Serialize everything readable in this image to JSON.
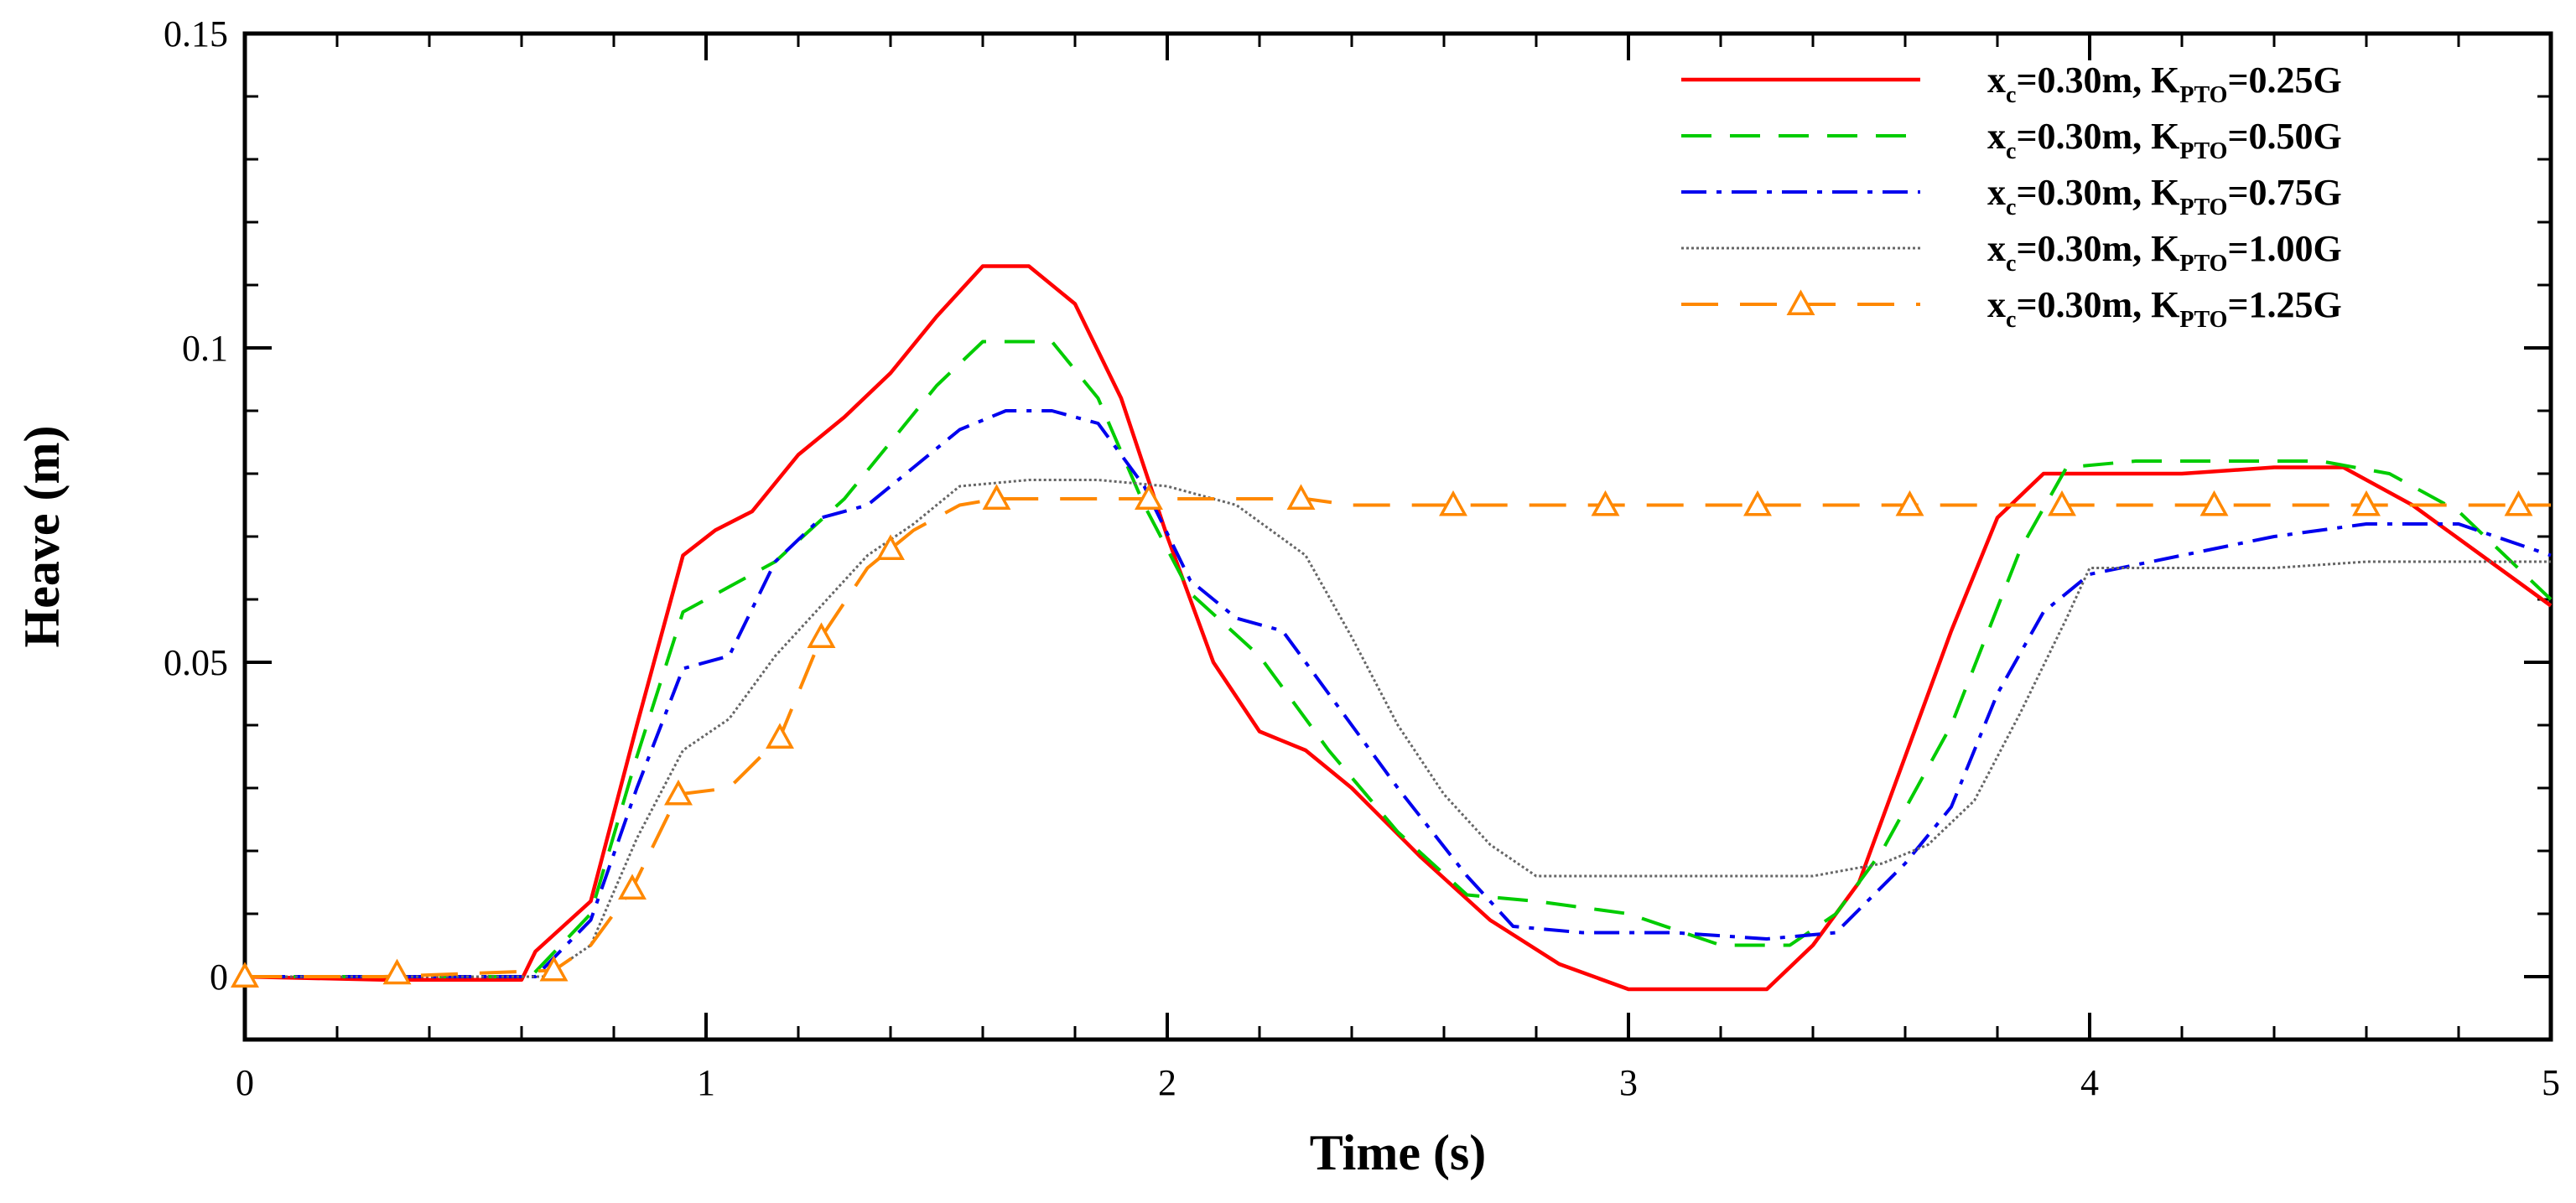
{
  "chart_data": {
    "type": "line",
    "title": "",
    "xlabel": "Time (s)",
    "ylabel": "Heave (m)",
    "xlim": [
      0,
      5
    ],
    "ylim": [
      -0.01,
      0.15
    ],
    "xticks": [
      0,
      1,
      2,
      3,
      4,
      5
    ],
    "yticks": [
      0,
      0.05,
      0.1,
      0.15
    ],
    "xtick_labels": [
      "0",
      "1",
      "2",
      "3",
      "4",
      "5"
    ],
    "ytick_labels": [
      "0",
      "0.05",
      "0.1",
      "0.15"
    ],
    "grid": false,
    "legend_position": "top-right",
    "series": [
      {
        "name": "xc=0.30m, KPTO=0.25G",
        "legend": {
          "x_sym": "x",
          "x_sub": "c",
          "mid": "=0.30m, ",
          "k_sym": "K",
          "k_sub": "PTO",
          "k_val": "=0.25G"
        },
        "color": "#ff0000",
        "style": "solid",
        "x": [
          0,
          0.3,
          0.6,
          0.63,
          0.75,
          0.85,
          0.95,
          1.02,
          1.1,
          1.2,
          1.3,
          1.4,
          1.5,
          1.6,
          1.7,
          1.8,
          1.9,
          2.0,
          2.1,
          2.2,
          2.3,
          2.4,
          2.55,
          2.7,
          2.85,
          3.0,
          3.15,
          3.3,
          3.4,
          3.5,
          3.6,
          3.7,
          3.8,
          3.9,
          4.0,
          4.2,
          4.4,
          4.55,
          4.7,
          4.85,
          5.0
        ],
        "y": [
          0,
          -0.0005,
          -0.0005,
          0.004,
          0.012,
          0.04,
          0.067,
          0.071,
          0.074,
          0.083,
          0.089,
          0.096,
          0.105,
          0.113,
          0.113,
          0.107,
          0.092,
          0.07,
          0.05,
          0.039,
          0.036,
          0.03,
          0.019,
          0.009,
          0.002,
          -0.002,
          -0.002,
          -0.002,
          0.005,
          0.015,
          0.035,
          0.055,
          0.073,
          0.08,
          0.08,
          0.08,
          0.081,
          0.081,
          0.075,
          0.067,
          0.059
        ]
      },
      {
        "name": "xc=0.30m, KPTO=0.50G",
        "legend": {
          "x_sym": "x",
          "x_sub": "c",
          "mid": "=0.30m, ",
          "k_sym": "K",
          "k_sub": "PTO",
          "k_val": "=0.50G"
        },
        "color": "#00cc00",
        "style": "dashed",
        "x": [
          0,
          0.3,
          0.62,
          0.75,
          0.85,
          0.95,
          1.05,
          1.15,
          1.3,
          1.4,
          1.5,
          1.6,
          1.75,
          1.85,
          1.95,
          2.05,
          2.2,
          2.35,
          2.5,
          2.65,
          2.8,
          3.0,
          3.2,
          3.35,
          3.45,
          3.55,
          3.7,
          3.85,
          3.95,
          4.1,
          4.3,
          4.5,
          4.65,
          4.8,
          5.0
        ],
        "y": [
          0,
          0,
          0,
          0.01,
          0.035,
          0.058,
          0.062,
          0.066,
          0.076,
          0.085,
          0.094,
          0.101,
          0.101,
          0.092,
          0.075,
          0.061,
          0.051,
          0.036,
          0.023,
          0.013,
          0.012,
          0.01,
          0.005,
          0.005,
          0.01,
          0.02,
          0.04,
          0.068,
          0.081,
          0.082,
          0.082,
          0.082,
          0.08,
          0.074,
          0.06
        ]
      },
      {
        "name": "xc=0.30m, KPTO=0.75G",
        "legend": {
          "x_sym": "x",
          "x_sub": "c",
          "mid": "=0.30m, ",
          "k_sym": "K",
          "k_sub": "PTO",
          "k_val": "=0.75G"
        },
        "color": "#0000ee",
        "style": "dashdot",
        "x": [
          0,
          0.3,
          0.63,
          0.75,
          0.85,
          0.95,
          1.05,
          1.15,
          1.25,
          1.35,
          1.45,
          1.55,
          1.65,
          1.75,
          1.85,
          1.95,
          2.05,
          2.15,
          2.25,
          2.35,
          2.5,
          2.65,
          2.75,
          2.9,
          3.1,
          3.3,
          3.45,
          3.6,
          3.7,
          3.8,
          3.9,
          4.0,
          4.2,
          4.4,
          4.6,
          4.8,
          5.0
        ],
        "y": [
          0,
          0,
          0,
          0.009,
          0.03,
          0.049,
          0.051,
          0.066,
          0.073,
          0.075,
          0.081,
          0.087,
          0.09,
          0.09,
          0.088,
          0.078,
          0.063,
          0.057,
          0.055,
          0.045,
          0.03,
          0.016,
          0.008,
          0.007,
          0.007,
          0.006,
          0.007,
          0.018,
          0.027,
          0.045,
          0.058,
          0.064,
          0.067,
          0.07,
          0.072,
          0.072,
          0.067
        ]
      },
      {
        "name": "xc=0.30m, KPTO=1.00G",
        "legend": {
          "x_sym": "x",
          "x_sub": "c",
          "mid": "=0.30m, ",
          "k_sym": "K",
          "k_sub": "PTO",
          "k_val": "=1.00G"
        },
        "color": "#666666",
        "style": "dotted",
        "x": [
          0,
          0.3,
          0.65,
          0.75,
          0.85,
          0.95,
          1.05,
          1.15,
          1.25,
          1.35,
          1.45,
          1.55,
          1.7,
          1.85,
          2.0,
          2.15,
          2.3,
          2.4,
          2.5,
          2.6,
          2.7,
          2.8,
          3.0,
          3.2,
          3.4,
          3.55,
          3.65,
          3.75,
          3.85,
          3.95,
          4.0,
          4.2,
          4.4,
          4.6,
          4.8,
          5.0
        ],
        "y": [
          0,
          0,
          0,
          0.005,
          0.022,
          0.036,
          0.041,
          0.051,
          0.059,
          0.067,
          0.072,
          0.078,
          0.079,
          0.079,
          0.078,
          0.075,
          0.067,
          0.054,
          0.04,
          0.029,
          0.021,
          0.016,
          0.016,
          0.016,
          0.016,
          0.018,
          0.021,
          0.028,
          0.042,
          0.057,
          0.065,
          0.065,
          0.065,
          0.066,
          0.066,
          0.066
        ]
      },
      {
        "name": "xc=0.30m, KPTO=1.25G",
        "legend": {
          "x_sym": "x",
          "x_sub": "c",
          "mid": "=0.30m, ",
          "k_sym": "K",
          "k_sub": "PTO",
          "k_val": "=1.25G"
        },
        "color": "#ff8800",
        "style": "longdash",
        "marker": "triangle",
        "x": [
          0,
          0.3,
          0.67,
          0.75,
          0.84,
          0.94,
          1.05,
          1.16,
          1.25,
          1.35,
          1.45,
          1.55,
          1.63,
          1.8,
          2.0,
          2.2,
          2.3,
          2.4,
          2.6,
          2.95,
          3.28,
          3.61,
          3.94,
          4.27,
          4.6,
          5.0
        ],
        "y": [
          0,
          0,
          0.001,
          0.005,
          0.014,
          0.029,
          0.03,
          0.038,
          0.054,
          0.065,
          0.071,
          0.075,
          0.076,
          0.076,
          0.076,
          0.076,
          0.076,
          0.075,
          0.075,
          0.075,
          0.075,
          0.075,
          0.075,
          0.075,
          0.075,
          0.075
        ],
        "marker_x": [
          0,
          0.33,
          0.67,
          0.84,
          0.94,
          1.16,
          1.25,
          1.4,
          1.63,
          1.96,
          2.29,
          2.62,
          2.95,
          3.28,
          3.61,
          3.94,
          4.27,
          4.6,
          4.93
        ],
        "marker_y": [
          0,
          0.0005,
          0.001,
          0.014,
          0.029,
          0.038,
          0.054,
          0.068,
          0.076,
          0.076,
          0.076,
          0.075,
          0.075,
          0.075,
          0.075,
          0.075,
          0.075,
          0.075,
          0.075
        ]
      }
    ]
  }
}
